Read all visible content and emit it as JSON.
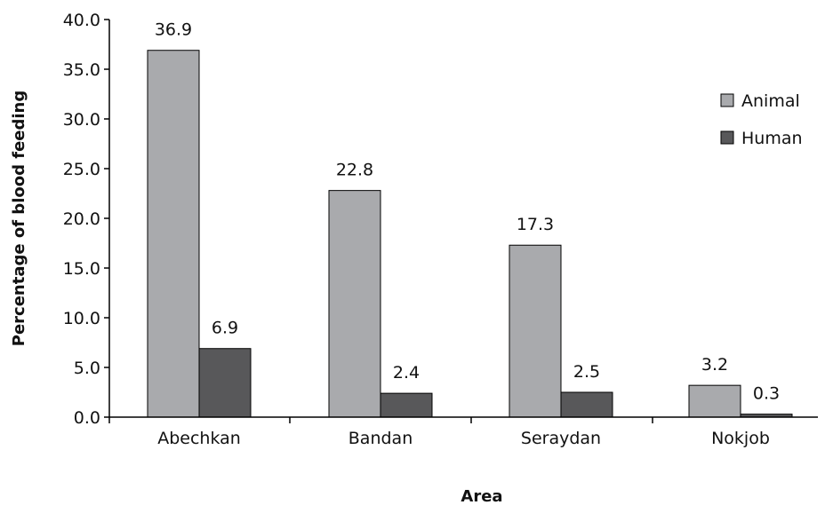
{
  "chart_data": {
    "type": "bar",
    "categories": [
      "Abechkan",
      "Bandan",
      "Seraydan",
      "Nokjob"
    ],
    "series": [
      {
        "name": "Animal",
        "values": [
          36.9,
          22.8,
          17.3,
          3.2
        ],
        "color": "#a9aaad"
      },
      {
        "name": "Human",
        "values": [
          6.9,
          2.4,
          2.5,
          0.3
        ],
        "color": "#58585a"
      }
    ],
    "data_labels": [
      [
        "36.9",
        "22.8",
        "17.3",
        "3.2"
      ],
      [
        "6.9",
        "2.4",
        "2.5",
        "0.3"
      ]
    ],
    "title": "",
    "xlabel": "Area",
    "ylabel": "Percentage of blood feeding",
    "ylim": [
      0,
      40
    ],
    "yticks": [
      "0.0",
      "5.0",
      "10.0",
      "15.0",
      "20.0",
      "25.0",
      "30.0",
      "35.0",
      "40.0"
    ],
    "grid": false,
    "legend_position": "right"
  }
}
